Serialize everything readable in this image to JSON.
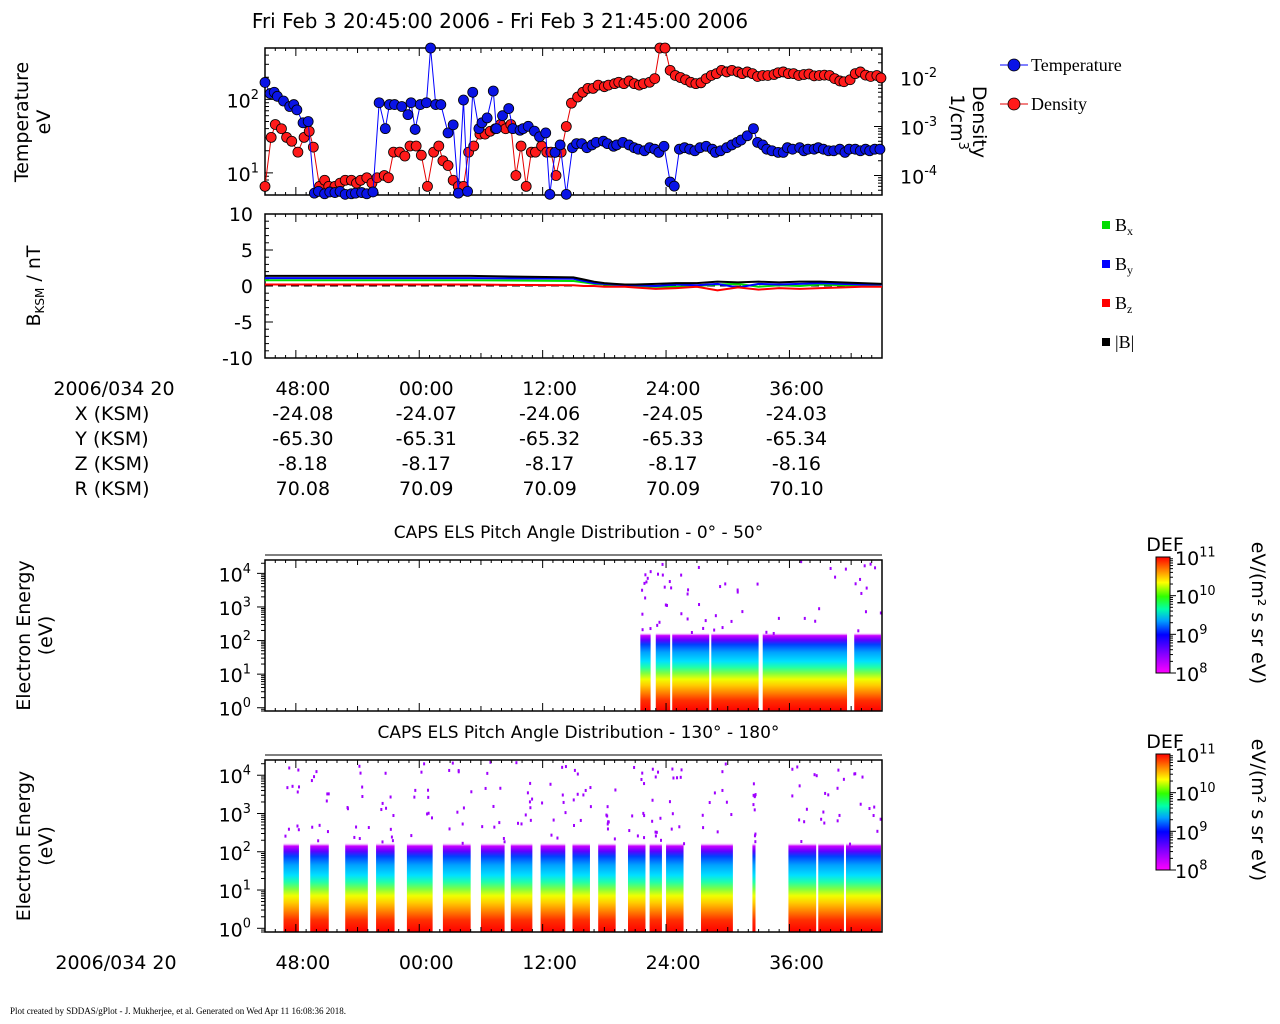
{
  "page_title": "Fri Feb 3 20:45:00 2006 - Fri Feb 3 21:45:00 2006",
  "footer": "Plot created by SDDAS/gPlot - J. Mukherjee, et al.  Generated on Wed Apr 11 16:08:36 2018.",
  "colors": {
    "temperature": "#0000ff",
    "temperature_marker": "#0a14e6",
    "density": "#e60000",
    "density_marker": "#ff1a1a",
    "bx": "#00dd00",
    "by": "#0000ff",
    "bz": "#ff0000",
    "bmag": "#000000"
  },
  "chart_data": [
    {
      "id": "moments",
      "type": "line",
      "ylabel": [
        "Temperature",
        "eV"
      ],
      "y2label": [
        "Density",
        "1/cm",
        "3"
      ],
      "yscale": "log",
      "ylim": [
        5,
        500
      ],
      "y2scale": "log",
      "y2lim": [
        4e-05,
        0.04
      ],
      "y_ticks": [
        {
          "value": 10,
          "base": "10",
          "exp": "1"
        },
        {
          "value": 100,
          "base": "10",
          "exp": "2"
        }
      ],
      "y2_ticks": [
        {
          "value": 0.0001,
          "base": "10",
          "exp": "-4"
        },
        {
          "value": 0.001,
          "base": "10",
          "exp": "-3"
        },
        {
          "value": 0.01,
          "base": "10",
          "exp": "-2"
        }
      ],
      "xlim_minutes": [
        0,
        60
      ],
      "legend_position": "right",
      "series": [
        {
          "name": "Temperature",
          "axis": "left",
          "x": [
            0.0,
            0.5,
            0.9,
            1.2,
            1.8,
            2.4,
            2.8,
            3.1,
            3.7,
            4.2,
            4.8,
            5.2,
            5.8,
            6.3,
            6.8,
            7.3,
            7.8,
            8.4,
            8.8,
            9.4,
            9.9,
            10.5,
            11.1,
            11.7,
            12.1,
            12.6,
            13.3,
            13.9,
            14.2,
            14.6,
            15.1,
            15.7,
            16.1,
            16.6,
            17.1,
            17.8,
            18.3,
            18.8,
            19.3,
            19.7,
            20.2,
            20.8,
            21.1,
            21.6,
            22.2,
            22.5,
            23.1,
            23.7,
            24.1,
            24.8,
            25.1,
            25.6,
            26.2,
            26.7,
            27.3,
            27.7,
            28.2,
            28.7,
            29.3,
            29.9,
            30.3,
            30.8,
            31.3,
            31.8,
            32.2,
            32.9,
            33.3,
            33.9,
            34.2,
            34.8,
            35.4,
            35.9,
            36.3,
            36.9,
            37.4,
            37.9,
            38.3,
            38.8,
            39.4,
            39.8,
            40.3,
            40.8,
            41.3,
            41.8,
            42.3,
            42.9,
            43.5,
            43.8,
            44.3,
            44.9,
            45.4,
            45.9,
            46.3,
            46.9,
            47.5,
            47.9,
            48.4,
            48.8,
            49.3,
            49.9,
            50.4,
            50.8,
            51.3,
            52.0,
            52.4,
            52.8,
            53.4,
            53.8,
            54.3,
            54.8,
            55.3,
            55.9,
            56.4,
            56.8,
            57.4,
            57.9,
            58.4,
            58.8,
            59.3,
            59.8
          ],
          "y": [
            170.0,
            120.0,
            125.0,
            110.0,
            95.0,
            80.0,
            85.0,
            72.0,
            48.0,
            50.0,
            5.3,
            5.6,
            5.2,
            5.5,
            5.4,
            5.6,
            5.1,
            5.2,
            5.3,
            5.4,
            5.2,
            5.5,
            90.0,
            40.0,
            85.0,
            85.0,
            80.0,
            62.0,
            90.0,
            39.0,
            85.0,
            90.0,
            500.0,
            85.0,
            85.0,
            35.0,
            45.0,
            5.3,
            98.0,
            5.6,
            125.0,
            40.0,
            48.0,
            56.0,
            130.0,
            40.0,
            60.0,
            75.0,
            40.0,
            38.0,
            40.0,
            43.0,
            37.0,
            31.0,
            35.0,
            5.1,
            19.0,
            24.0,
            5.1,
            22.0,
            25.0,
            25.0,
            22.0,
            24.0,
            26.0,
            27.0,
            25.0,
            23.0,
            24.0,
            26.0,
            24.0,
            22.0,
            21.0,
            20.0,
            22.0,
            21.0,
            19.0,
            23.0,
            7.5,
            6.6,
            21.0,
            22.0,
            21.0,
            20.0,
            22.0,
            23.0,
            21.0,
            19.0,
            20.0,
            22.0,
            24.0,
            26.0,
            28.0,
            32.0,
            40.0,
            26.0,
            24.0,
            21.0,
            20.0,
            19.0,
            19.0,
            22.0,
            21.0,
            22.0,
            20.0,
            21.0,
            21.0,
            22.0,
            21.0,
            20.0,
            20.0,
            21.0,
            19.0,
            21.0,
            21.0,
            20.0,
            21.0,
            20.0,
            21.0,
            21.0
          ]
        },
        {
          "name": "Density",
          "axis": "right",
          "x": [
            0.0,
            0.6,
            1.0,
            1.6,
            2.1,
            2.6,
            3.2,
            3.8,
            4.3,
            4.7,
            5.3,
            5.8,
            6.2,
            6.8,
            7.3,
            7.8,
            8.4,
            8.9,
            9.3,
            9.9,
            10.4,
            10.9,
            11.6,
            12.0,
            12.5,
            13.1,
            13.6,
            14.1,
            14.7,
            15.2,
            15.8,
            16.4,
            16.9,
            17.3,
            17.8,
            18.3,
            18.8,
            19.3,
            19.8,
            20.3,
            20.9,
            21.4,
            21.9,
            22.4,
            22.9,
            23.4,
            23.9,
            24.4,
            24.9,
            25.4,
            25.9,
            26.3,
            26.9,
            27.4,
            27.8,
            28.3,
            28.8,
            29.3,
            29.8,
            30.4,
            30.9,
            31.4,
            31.9,
            32.4,
            33.0,
            33.4,
            34.0,
            34.4,
            34.9,
            35.4,
            35.9,
            36.4,
            36.8,
            37.4,
            37.9,
            38.4,
            38.9,
            39.4,
            39.9,
            40.4,
            40.9,
            41.4,
            41.9,
            42.4,
            42.9,
            43.4,
            43.9,
            44.4,
            44.9,
            45.4,
            46.0,
            46.4,
            46.9,
            47.4,
            47.9,
            48.4,
            48.9,
            49.5,
            49.9,
            50.4,
            50.9,
            51.4,
            51.9,
            52.4,
            52.9,
            53.4,
            53.9,
            54.4,
            54.9,
            55.4,
            55.9,
            56.3,
            56.9,
            57.4,
            57.9,
            58.4,
            58.9,
            59.5,
            59.9
          ],
          "y": [
            6e-05,
            0.0006,
            0.0011,
            0.0009,
            0.0006,
            0.0005,
            0.0003,
            0.0006,
            0.0008,
            0.00038,
            6e-05,
            8e-05,
            6e-05,
            6e-05,
            7e-05,
            8e-05,
            8e-05,
            7e-05,
            8e-05,
            9e-05,
            7e-05,
            9e-05,
            0.0001,
            9e-05,
            0.0003,
            0.0003,
            0.00025,
            0.0004,
            0.0004,
            0.00026,
            6e-05,
            0.0003,
            0.0004,
            0.0002,
            0.00016,
            8e-05,
            6e-05,
            6e-05,
            0.0003,
            0.0004,
            0.0007,
            0.0007,
            0.0008,
            0.0009,
            0.0011,
            0.0009,
            0.0011,
            0.0001,
            0.0004,
            6e-05,
            0.0003,
            0.0003,
            0.0004,
            0.0003,
            0.0003,
            0.0001,
            0.0003,
            0.001,
            0.003,
            0.004,
            0.005,
            0.006,
            0.006,
            0.007,
            0.0065,
            0.007,
            0.0075,
            0.008,
            0.0075,
            0.0085,
            0.0075,
            0.007,
            0.0075,
            0.008,
            0.0095,
            0.04,
            0.04,
            0.014,
            0.011,
            0.01,
            0.009,
            0.008,
            0.0075,
            0.0078,
            0.0095,
            0.011,
            0.012,
            0.014,
            0.013,
            0.014,
            0.013,
            0.012,
            0.013,
            0.012,
            0.0105,
            0.011,
            0.011,
            0.0115,
            0.0125,
            0.013,
            0.012,
            0.012,
            0.011,
            0.0115,
            0.0118,
            0.0108,
            0.011,
            0.0112,
            0.011,
            0.0095,
            0.0085,
            0.0082,
            0.009,
            0.012,
            0.013,
            0.0112,
            0.0105,
            0.011,
            0.0098
          ]
        }
      ]
    },
    {
      "id": "magnetic-field",
      "type": "line",
      "ylabel": "B",
      "ylabel_sub": "KSM",
      "ylabel_unit": " / nT",
      "ylim": [
        -10,
        10
      ],
      "y_ticks": [
        10,
        5,
        0,
        -5,
        -10
      ],
      "xlim_minutes": [
        0,
        60
      ],
      "legend_position": "right",
      "series": [
        {
          "name": "B",
          "sub": "x",
          "key": "bx",
          "x": [
            0,
            10,
            20,
            30,
            31,
            32,
            33,
            34,
            35,
            36,
            38,
            40,
            42,
            44,
            46,
            48,
            50,
            52,
            54,
            56,
            58,
            60
          ],
          "y": [
            0.8,
            0.8,
            0.8,
            0.7,
            0.5,
            0.3,
            0.2,
            0.1,
            0.0,
            0.0,
            -0.1,
            -0.1,
            0.0,
            0.2,
            0.3,
            -0.1,
            0.1,
            0.0,
            0.2,
            0.1,
            0.0,
            0.0
          ]
        },
        {
          "name": "B",
          "sub": "y",
          "key": "by",
          "x": [
            0,
            10,
            20,
            30,
            31,
            32,
            33,
            34,
            35,
            36,
            38,
            40,
            42,
            44,
            46,
            48,
            50,
            52,
            54,
            56,
            58,
            60
          ],
          "y": [
            1.1,
            1.1,
            1.1,
            1.0,
            0.7,
            0.4,
            0.3,
            0.2,
            0.1,
            0.1,
            0.0,
            0.2,
            0.1,
            0.3,
            -0.2,
            0.3,
            0.2,
            0.3,
            0.4,
            0.3,
            0.2,
            0.2
          ]
        },
        {
          "name": "B",
          "sub": "z",
          "key": "bz",
          "x": [
            0,
            10,
            20,
            30,
            31,
            32,
            33,
            34,
            35,
            36,
            38,
            40,
            42,
            44,
            46,
            48,
            50,
            52,
            54,
            56,
            58,
            60
          ],
          "y": [
            0.2,
            0.2,
            0.2,
            0.1,
            0.0,
            0.0,
            -0.1,
            -0.1,
            -0.1,
            -0.2,
            -0.4,
            -0.3,
            -0.1,
            -0.6,
            -0.2,
            -0.5,
            -0.3,
            -0.4,
            -0.3,
            -0.2,
            -0.1,
            -0.1
          ]
        },
        {
          "name": "|B|",
          "sub": "",
          "key": "bmag",
          "x": [
            0,
            10,
            20,
            30,
            31,
            32,
            33,
            34,
            35,
            36,
            38,
            40,
            42,
            44,
            46,
            48,
            50,
            52,
            54,
            56,
            58,
            60
          ],
          "y": [
            1.4,
            1.4,
            1.4,
            1.2,
            0.9,
            0.6,
            0.4,
            0.3,
            0.2,
            0.2,
            0.3,
            0.4,
            0.4,
            0.6,
            0.5,
            0.6,
            0.5,
            0.6,
            0.6,
            0.5,
            0.4,
            0.3
          ]
        }
      ],
      "zero_line": "dashed"
    },
    {
      "id": "pad-0-50",
      "type": "heatmap",
      "title": "CAPS ELS Pitch Angle Distribution - 0° - 50°",
      "ylabel": [
        "Electron Energy",
        "(eV)"
      ],
      "yscale": "log",
      "ylim": [
        0.8,
        25000
      ],
      "y_ticks": [
        {
          "value": 1,
          "base": "10",
          "exp": "0"
        },
        {
          "value": 10,
          "base": "10",
          "exp": "1"
        },
        {
          "value": 100,
          "base": "10",
          "exp": "2"
        },
        {
          "value": 1000,
          "base": "10",
          "exp": "3"
        },
        {
          "value": 10000,
          "base": "10",
          "exp": "4"
        }
      ],
      "colorbar": {
        "label": "DEF",
        "unit_label": "eV/(m² s sr eV)",
        "ticks": [
          {
            "base": "10",
            "exp": "11"
          },
          {
            "base": "10",
            "exp": "10"
          },
          {
            "base": "10",
            "exp": "9"
          },
          {
            "base": "10",
            "exp": "8"
          }
        ],
        "range_log10": [
          8,
          11
        ]
      },
      "data_intervals_minutes": [
        [
          36.5,
          37.5
        ],
        [
          38.0,
          39.4
        ],
        [
          39.6,
          43.2
        ],
        [
          43.4,
          48.0
        ],
        [
          48.4,
          56.6
        ],
        [
          57.3,
          59.9
        ]
      ]
    },
    {
      "id": "pad-130-180",
      "type": "heatmap",
      "title": "CAPS ELS Pitch Angle Distribution - 130° - 180°",
      "ylabel": [
        "Electron Energy",
        "(eV)"
      ],
      "yscale": "log",
      "ylim": [
        0.8,
        25000
      ],
      "y_ticks": [
        {
          "value": 1,
          "base": "10",
          "exp": "0"
        },
        {
          "value": 10,
          "base": "10",
          "exp": "1"
        },
        {
          "value": 100,
          "base": "10",
          "exp": "2"
        },
        {
          "value": 1000,
          "base": "10",
          "exp": "3"
        },
        {
          "value": 10000,
          "base": "10",
          "exp": "4"
        }
      ],
      "colorbar": {
        "label": "DEF",
        "unit_label": "eV/(m² s sr eV)",
        "ticks": [
          {
            "base": "10",
            "exp": "11"
          },
          {
            "base": "10",
            "exp": "10"
          },
          {
            "base": "10",
            "exp": "9"
          },
          {
            "base": "10",
            "exp": "8"
          }
        ],
        "range_log10": [
          8,
          11
        ]
      },
      "data_intervals_minutes": [
        [
          1.8,
          3.3
        ],
        [
          4.4,
          6.2
        ],
        [
          7.8,
          10.0
        ],
        [
          10.8,
          12.6
        ],
        [
          13.8,
          16.3
        ],
        [
          17.3,
          20.0
        ],
        [
          21.0,
          23.3
        ],
        [
          23.9,
          26.0
        ],
        [
          26.8,
          29.2
        ],
        [
          29.9,
          31.6
        ],
        [
          32.4,
          34.1
        ],
        [
          35.3,
          37.0
        ],
        [
          37.4,
          38.6
        ],
        [
          39.0,
          40.7
        ],
        [
          42.4,
          45.5
        ],
        [
          47.4,
          47.7
        ],
        [
          50.9,
          53.6
        ],
        [
          53.8,
          56.3
        ],
        [
          56.5,
          59.9
        ]
      ]
    }
  ],
  "time_axis": {
    "tick_labels": [
      "48:00",
      "00:00",
      "12:00",
      "24:00",
      "36:00"
    ],
    "tick_minutes": [
      3,
      15,
      27,
      39,
      51
    ],
    "date_label": "2006/034 20",
    "ephemeris": [
      {
        "label": "X (KSM)",
        "values": [
          "-24.08",
          "-24.07",
          "-24.06",
          "-24.05",
          "-24.03"
        ]
      },
      {
        "label": "Y (KSM)",
        "values": [
          "-65.30",
          "-65.31",
          "-65.32",
          "-65.33",
          "-65.34"
        ]
      },
      {
        "label": "Z (KSM)",
        "values": [
          "-8.18",
          "-8.17",
          "-8.17",
          "-8.17",
          "-8.16"
        ]
      },
      {
        "label": "R (KSM)",
        "values": [
          "70.08",
          "70.09",
          "70.09",
          "70.09",
          "70.10"
        ]
      }
    ]
  }
}
